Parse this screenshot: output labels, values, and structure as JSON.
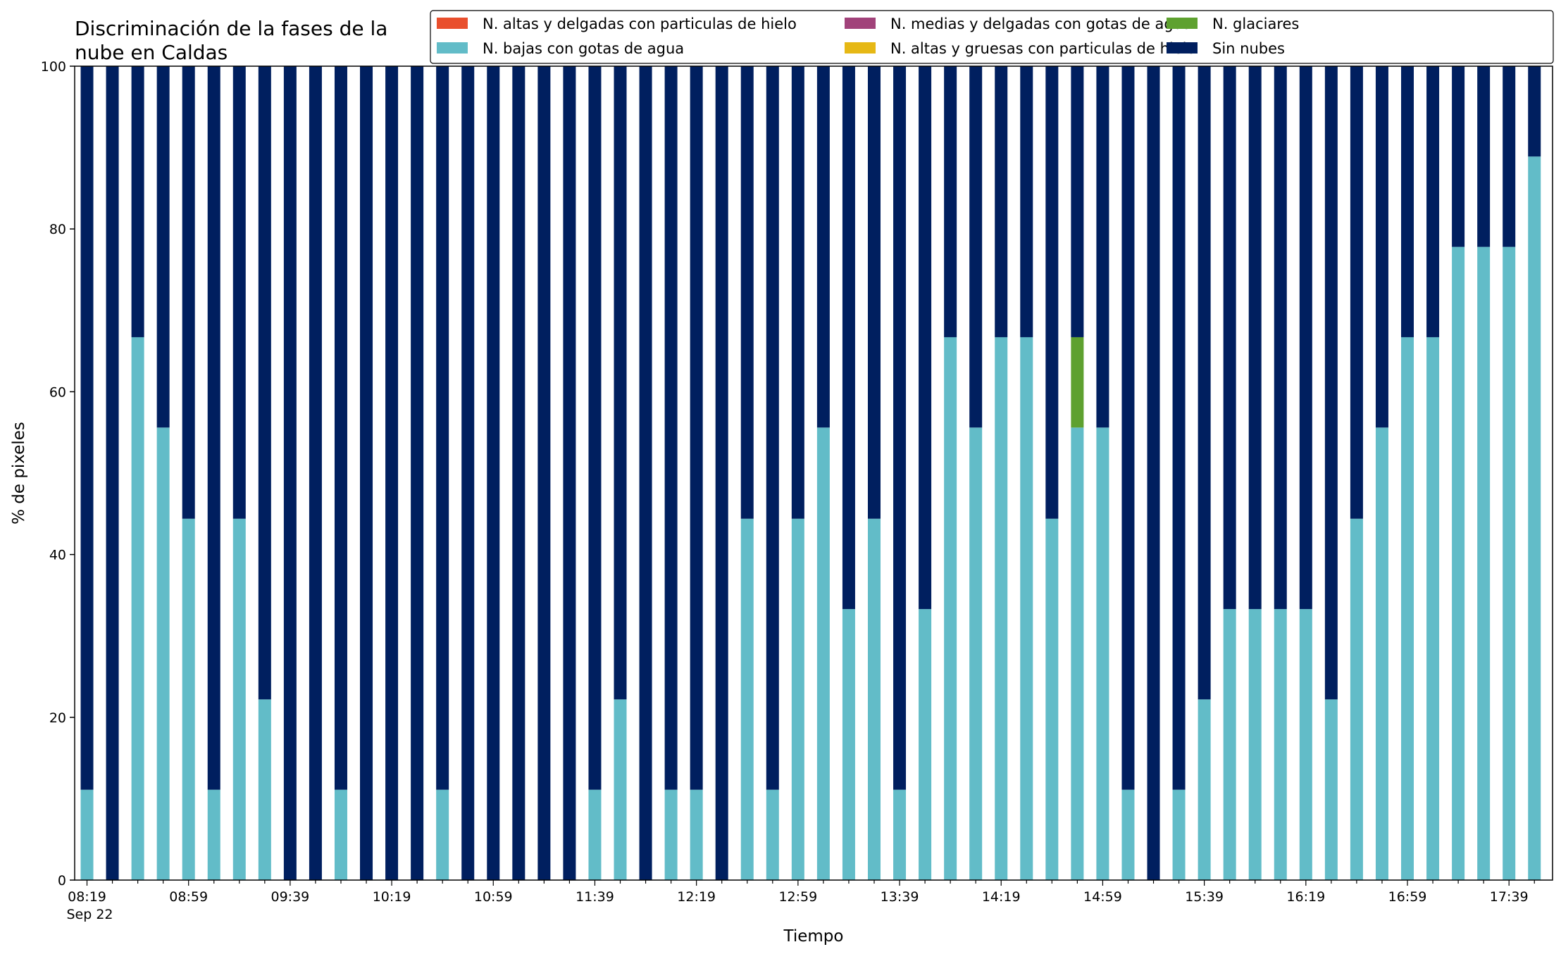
{
  "chart_data": {
    "type": "bar",
    "stacked": true,
    "title_lines": [
      "Discriminación de la fases de la",
      "nube en Caldas"
    ],
    "xlabel": "Tiempo",
    "ylabel": "% de pixeles",
    "ylim": [
      0,
      100
    ],
    "yticks": [
      "0",
      "20",
      "40",
      "60",
      "80",
      "100"
    ],
    "grid": false,
    "legend_position": "top-right",
    "x_tick_labels": [
      "08:19",
      "08:59",
      "09:39",
      "10:19",
      "10:59",
      "11:39",
      "12:19",
      "12:59",
      "13:39",
      "14:19",
      "14:59",
      "15:39",
      "16:19",
      "16:59",
      "17:39"
    ],
    "x_date_label": "Sep 22",
    "categories": [
      "08:19",
      "08:29",
      "08:39",
      "08:49",
      "08:59",
      "09:09",
      "09:19",
      "09:29",
      "09:39",
      "09:49",
      "09:59",
      "10:09",
      "10:19",
      "10:29",
      "10:39",
      "10:49",
      "10:59",
      "11:09",
      "11:19",
      "11:29",
      "11:39",
      "11:49",
      "11:59",
      "12:09",
      "12:19",
      "12:29",
      "12:39",
      "12:49",
      "12:59",
      "13:09",
      "13:19",
      "13:29",
      "13:39",
      "13:49",
      "13:59",
      "14:09",
      "14:19",
      "14:29",
      "14:39",
      "14:49",
      "14:59",
      "15:09",
      "15:19",
      "15:29",
      "15:39",
      "15:49",
      "15:59",
      "16:09",
      "16:19",
      "16:29",
      "16:39",
      "16:49",
      "16:59",
      "17:09",
      "17:19",
      "17:29",
      "17:39",
      "17:49"
    ],
    "series": [
      {
        "name": "N. altas y delgadas con particulas de hielo",
        "color": "#e94f2d",
        "values": [
          0,
          0,
          0,
          0,
          0,
          0,
          0,
          0,
          0,
          0,
          0,
          0,
          0,
          0,
          0,
          0,
          0,
          0,
          0,
          0,
          0,
          0,
          0,
          0,
          0,
          0,
          0,
          0,
          0,
          0,
          0,
          0,
          0,
          0,
          0,
          0,
          0,
          0,
          0,
          0,
          0,
          0,
          0,
          0,
          0,
          0,
          0,
          0,
          0,
          0,
          0,
          0,
          0,
          0,
          0,
          0,
          0,
          0
        ]
      },
      {
        "name": "N. altas y gruesas con particulas de hielo",
        "color": "#e6b815",
        "values": [
          0,
          0,
          0,
          0,
          0,
          0,
          0,
          0,
          0,
          0,
          0,
          0,
          0,
          0,
          0,
          0,
          0,
          0,
          0,
          0,
          0,
          0,
          0,
          0,
          0,
          0,
          0,
          0,
          0,
          0,
          0,
          0,
          0,
          0,
          0,
          0,
          0,
          0,
          0,
          0,
          0,
          0,
          0,
          0,
          0,
          0,
          0,
          0,
          0,
          0,
          0,
          0,
          0,
          0,
          0,
          0,
          0,
          0
        ]
      },
      {
        "name": "N. bajas con gotas de agua",
        "color": "#62bcc8",
        "values": [
          11.1,
          0,
          66.7,
          55.6,
          44.4,
          11.1,
          44.4,
          22.2,
          0,
          0,
          11.1,
          0,
          0,
          0,
          11.1,
          0,
          0,
          0,
          0,
          0,
          11.1,
          22.2,
          0,
          11.1,
          11.1,
          0,
          44.4,
          11.1,
          44.4,
          55.6,
          33.3,
          44.4,
          11.1,
          33.3,
          66.7,
          55.6,
          66.7,
          66.7,
          44.4,
          55.6,
          55.6,
          11.1,
          0,
          11.1,
          22.2,
          33.3,
          33.3,
          33.3,
          33.3,
          22.2,
          44.4,
          55.6,
          66.7,
          66.7,
          77.8,
          77.8,
          77.8,
          88.9
        ]
      },
      {
        "name": "N. glaciares",
        "color": "#5ea12f",
        "values": [
          0,
          0,
          0,
          0,
          0,
          0,
          0,
          0,
          0,
          0,
          0,
          0,
          0,
          0,
          0,
          0,
          0,
          0,
          0,
          0,
          0,
          0,
          0,
          0,
          0,
          0,
          0,
          0,
          0,
          0,
          0,
          0,
          0,
          0,
          0,
          0,
          0,
          0,
          0,
          11.1,
          0,
          0,
          0,
          0,
          0,
          0,
          0,
          0,
          0,
          0,
          0,
          0,
          0,
          0,
          0,
          0,
          0,
          0
        ]
      },
      {
        "name": "N. medias y delgadas con gotas de agua",
        "color": "#a1427a",
        "values": [
          0,
          0,
          0,
          0,
          0,
          0,
          0,
          0,
          0,
          0,
          0,
          0,
          0,
          0,
          0,
          0,
          0,
          0,
          0,
          0,
          0,
          0,
          0,
          0,
          0,
          0,
          0,
          0,
          0,
          0,
          0,
          0,
          0,
          0,
          0,
          0,
          0,
          0,
          0,
          0,
          0,
          0,
          0,
          0,
          0,
          0,
          0,
          0,
          0,
          0,
          0,
          0,
          0,
          0,
          0,
          0,
          0,
          0
        ]
      },
      {
        "name": "Sin nubes",
        "color": "#001f5f",
        "values": [
          88.9,
          100,
          33.3,
          44.4,
          55.6,
          88.9,
          55.6,
          77.8,
          100,
          100,
          88.9,
          100,
          100,
          100,
          88.9,
          100,
          100,
          100,
          100,
          100,
          88.9,
          77.8,
          100,
          88.9,
          88.9,
          100,
          55.6,
          88.9,
          55.6,
          44.4,
          66.7,
          55.6,
          88.9,
          66.7,
          33.3,
          44.4,
          33.3,
          33.3,
          55.6,
          33.3,
          44.4,
          88.9,
          100,
          88.9,
          77.8,
          66.7,
          66.7,
          66.7,
          66.7,
          77.8,
          55.6,
          44.4,
          33.3,
          33.3,
          22.2,
          22.2,
          22.2,
          11.1
        ]
      }
    ],
    "legend_order": [
      0,
      2,
      4,
      1,
      3,
      5
    ]
  }
}
